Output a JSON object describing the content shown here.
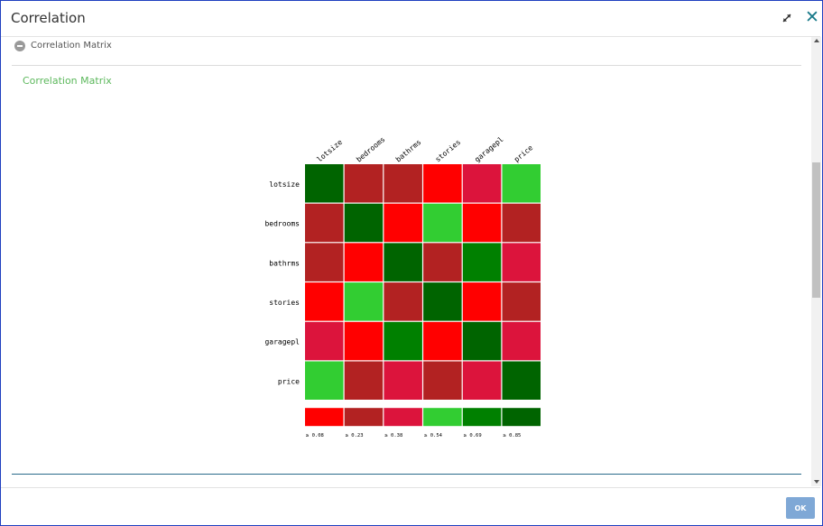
{
  "window": {
    "title": "Correlation"
  },
  "icons": {
    "expand": "expand-icon",
    "close": "close-icon"
  },
  "section": {
    "label": "Correlation Matrix",
    "toggle_icon": "minus-circle-icon"
  },
  "footer": {
    "ok_label": "OK"
  },
  "chart_data": {
    "type": "heatmap",
    "title": "Correlation Matrix",
    "rows": [
      "lotsize",
      "bedrooms",
      "bathrms",
      "stories",
      "garagepl",
      "price"
    ],
    "columns": [
      "lotsize",
      "bedrooms",
      "bathrms",
      "stories",
      "garagepl",
      "price"
    ],
    "color_levels": [
      {
        "label": "≥ 0.08",
        "color": "#ff0000"
      },
      {
        "label": "≥ 0.23",
        "color": "#b22222"
      },
      {
        "label": "≥ 0.38",
        "color": "#dc143c"
      },
      {
        "label": "≥ 0.54",
        "color": "#32cd32"
      },
      {
        "label": "≥ 0.69",
        "color": "#008000"
      },
      {
        "label": "≥ 0.85",
        "color": "#006400"
      }
    ],
    "cell_levels": [
      [
        5,
        1,
        1,
        0,
        2,
        3
      ],
      [
        1,
        5,
        0,
        3,
        0,
        1
      ],
      [
        1,
        0,
        5,
        1,
        4,
        2
      ],
      [
        0,
        3,
        1,
        5,
        0,
        1
      ],
      [
        2,
        0,
        4,
        0,
        5,
        2
      ],
      [
        3,
        1,
        2,
        1,
        2,
        5
      ]
    ]
  }
}
